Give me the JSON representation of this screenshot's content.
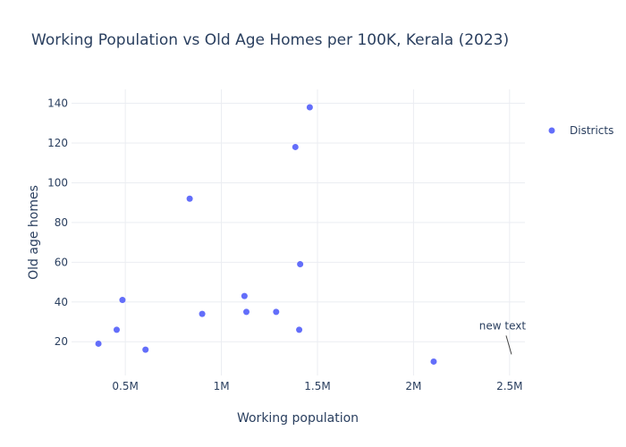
{
  "chart_data": {
    "type": "scatter",
    "title": "Working Population vs Old Age Homes per 100K, Kerala (2023)",
    "xlabel": "Working population",
    "ylabel": "Old age homes",
    "xlim": [
      220000,
      2580000
    ],
    "ylim": [
      3,
      147
    ],
    "x_ticks": [
      500000,
      1000000,
      1500000,
      2000000,
      2500000
    ],
    "x_tick_labels": [
      "0.5M",
      "1M",
      "1.5M",
      "2M",
      "2.5M"
    ],
    "y_ticks": [
      20,
      40,
      60,
      80,
      100,
      120,
      140
    ],
    "y_tick_labels": [
      "20",
      "40",
      "60",
      "80",
      "100",
      "120",
      "140"
    ],
    "grid": true,
    "legend_position": "top-right",
    "series": [
      {
        "name": "Districts",
        "color": "#636efa",
        "points": [
          {
            "x": 360000,
            "y": 19
          },
          {
            "x": 455000,
            "y": 26
          },
          {
            "x": 485000,
            "y": 41
          },
          {
            "x": 605000,
            "y": 16
          },
          {
            "x": 835000,
            "y": 92
          },
          {
            "x": 900000,
            "y": 34
          },
          {
            "x": 1120000,
            "y": 43
          },
          {
            "x": 1130000,
            "y": 35
          },
          {
            "x": 1285000,
            "y": 35
          },
          {
            "x": 1385000,
            "y": 118
          },
          {
            "x": 1405000,
            "y": 26
          },
          {
            "x": 1410000,
            "y": 59
          },
          {
            "x": 1460000,
            "y": 138
          },
          {
            "x": 2105000,
            "y": 10
          }
        ]
      }
    ],
    "annotations": [
      {
        "text": "new text",
        "x": 2510000,
        "y": 15
      }
    ]
  }
}
